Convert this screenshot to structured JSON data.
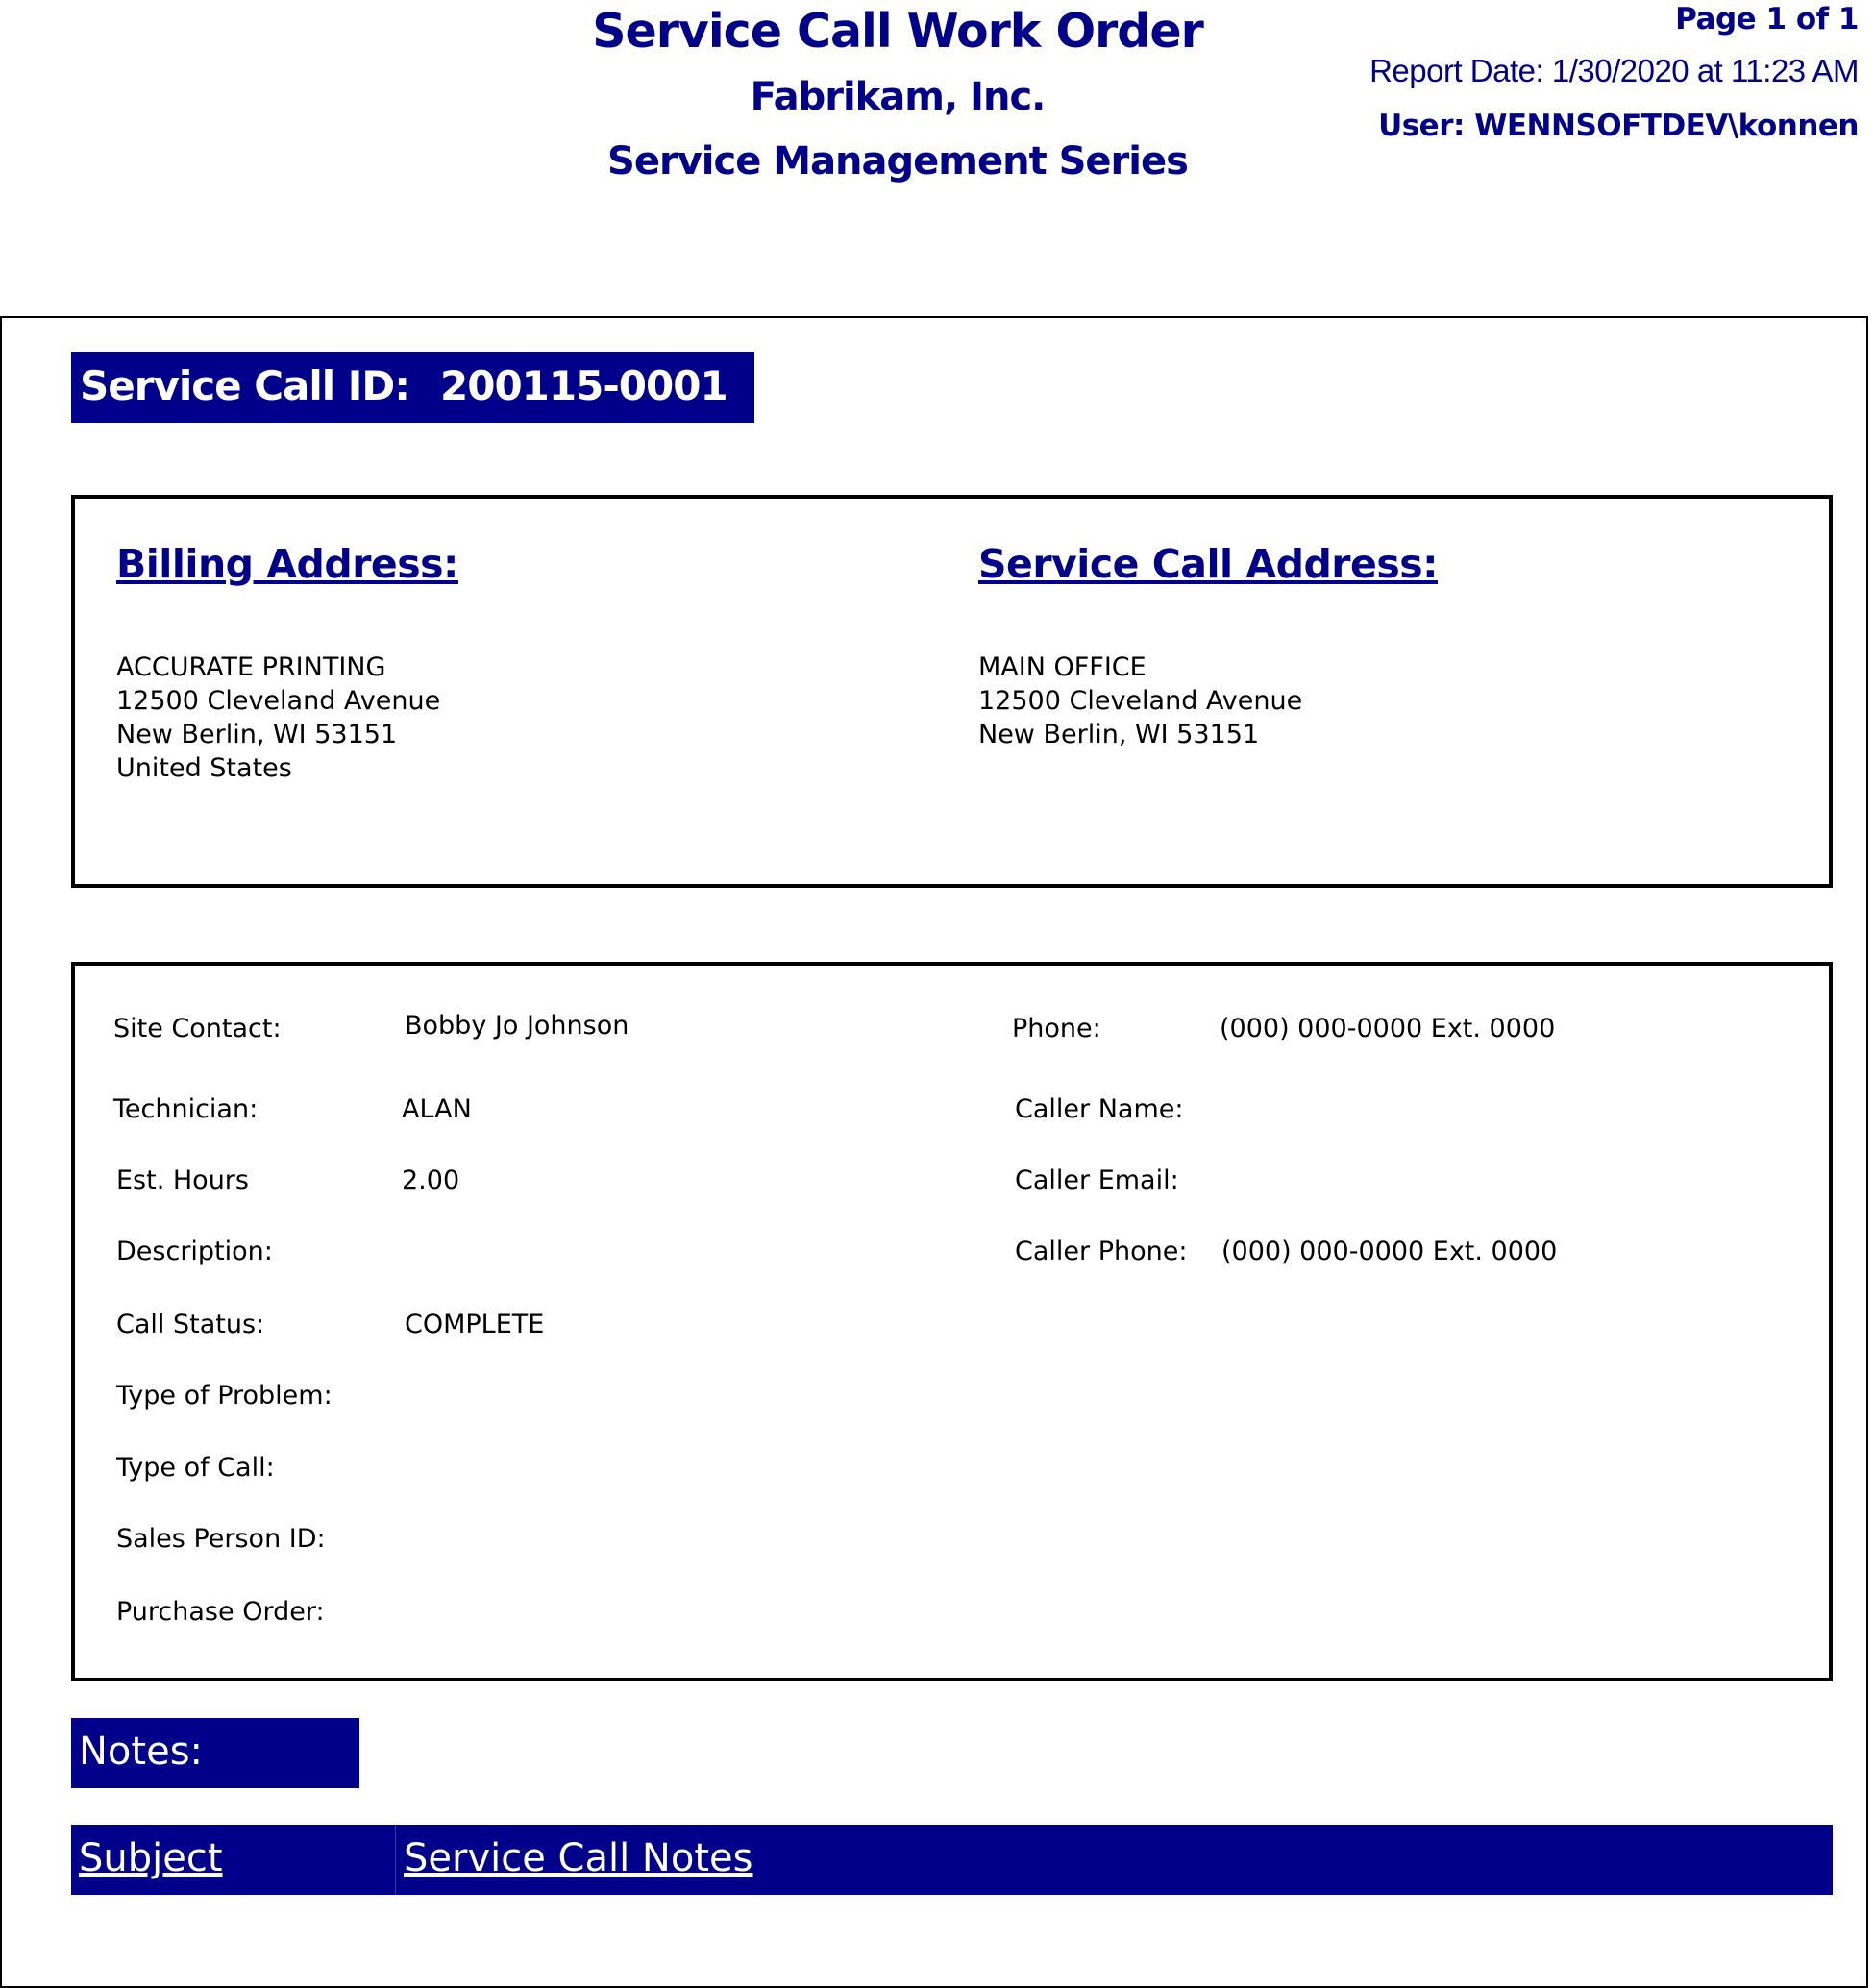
{
  "header": {
    "title": "Service Call Work Order",
    "company": "Fabrikam, Inc.",
    "series": "Service Management Series",
    "page": "Page 1 of 1",
    "report_date": "Report Date: 1/30/2020 at 11:23 AM",
    "user": "User: WENNSOFTDEV\\konnen"
  },
  "service_call": {
    "id_label": "Service Call ID:",
    "id_value": "200115-0001"
  },
  "addresses": {
    "billing_heading": "Billing Address:",
    "billing_lines": [
      "ACCURATE PRINTING",
      "12500 Cleveland Avenue",
      "New Berlin, WI 53151",
      "United States"
    ],
    "service_heading": "Service Call Address:",
    "service_lines": [
      "MAIN OFFICE",
      "12500 Cleveland Avenue",
      "New Berlin, WI 53151"
    ]
  },
  "details": {
    "left": [
      {
        "label": "Site Contact:",
        "value": "Bobby Jo Johnson"
      },
      {
        "label": "Technician:",
        "value": "ALAN"
      },
      {
        "label": "Est. Hours",
        "value": "2.00"
      },
      {
        "label": "Description:",
        "value": ""
      },
      {
        "label": "Call Status:",
        "value": "COMPLETE"
      },
      {
        "label": "Type of Problem:",
        "value": ""
      },
      {
        "label": "Type of Call:",
        "value": ""
      },
      {
        "label": "Sales Person ID:",
        "value": ""
      },
      {
        "label": "Purchase Order:",
        "value": ""
      }
    ],
    "right": [
      {
        "label": "Phone:",
        "value": "(000) 000-0000 Ext. 0000"
      },
      {
        "label": "Caller Name:",
        "value": ""
      },
      {
        "label": "Caller Email:",
        "value": ""
      },
      {
        "label": "Caller Phone:",
        "value": "(000) 000-0000 Ext. 0000"
      }
    ]
  },
  "notes": {
    "label": "Notes:",
    "columns": [
      "Subject",
      "Service Call Notes"
    ]
  },
  "colors": {
    "accent": "#00008B"
  }
}
